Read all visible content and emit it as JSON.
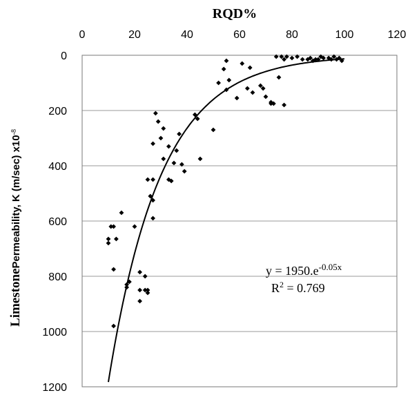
{
  "chart_data": {
    "type": "scatter",
    "title": "RQD%",
    "xlabel": "RQD%",
    "ylabel_bold": "Limestone",
    "ylabel_rest": "Permeability, K  (m/sec) x10",
    "ylabel_exp": "-8",
    "xlim": [
      0,
      120
    ],
    "ylim": [
      0,
      1200
    ],
    "y_inverted": true,
    "x_axis_position": "top",
    "xticks": [
      "0",
      "20",
      "40",
      "60",
      "80",
      "100",
      "120"
    ],
    "yticks": [
      "0",
      "200",
      "400",
      "600",
      "800",
      "1000",
      "1200"
    ],
    "grid": "horizontal",
    "points": [
      [
        10,
        665
      ],
      [
        10,
        680
      ],
      [
        11,
        620
      ],
      [
        12,
        620
      ],
      [
        12,
        775
      ],
      [
        13,
        665
      ],
      [
        12,
        980
      ],
      [
        15,
        570
      ],
      [
        17,
        830
      ],
      [
        17,
        840
      ],
      [
        18,
        820
      ],
      [
        20,
        620
      ],
      [
        22,
        890
      ],
      [
        22,
        850
      ],
      [
        22,
        785
      ],
      [
        24,
        850
      ],
      [
        24,
        800
      ],
      [
        25,
        860
      ],
      [
        25,
        850
      ],
      [
        25,
        450
      ],
      [
        26,
        510
      ],
      [
        27,
        525
      ],
      [
        27,
        450
      ],
      [
        27,
        590
      ],
      [
        27,
        320
      ],
      [
        28,
        210
      ],
      [
        29,
        240
      ],
      [
        30,
        300
      ],
      [
        31,
        375
      ],
      [
        31,
        265
      ],
      [
        33,
        450
      ],
      [
        33,
        330
      ],
      [
        34,
        455
      ],
      [
        35,
        390
      ],
      [
        36,
        345
      ],
      [
        37,
        285
      ],
      [
        38,
        395
      ],
      [
        39,
        420
      ],
      [
        43,
        215
      ],
      [
        44,
        230
      ],
      [
        45,
        375
      ],
      [
        50,
        270
      ],
      [
        52,
        100
      ],
      [
        54,
        50
      ],
      [
        55,
        125
      ],
      [
        55,
        20
      ],
      [
        56,
        90
      ],
      [
        59,
        155
      ],
      [
        61,
        30
      ],
      [
        63,
        120
      ],
      [
        64,
        45
      ],
      [
        65,
        135
      ],
      [
        68,
        110
      ],
      [
        69,
        120
      ],
      [
        70,
        150
      ],
      [
        72,
        170
      ],
      [
        72,
        175
      ],
      [
        73,
        175
      ],
      [
        74,
        5
      ],
      [
        75,
        80
      ],
      [
        76,
        5
      ],
      [
        77,
        15
      ],
      [
        77,
        180
      ],
      [
        78,
        5
      ],
      [
        80,
        10
      ],
      [
        82,
        5
      ],
      [
        84,
        15
      ],
      [
        86,
        15
      ],
      [
        87,
        10
      ],
      [
        88,
        20
      ],
      [
        89,
        15
      ],
      [
        90,
        15
      ],
      [
        91,
        5
      ],
      [
        92,
        10
      ],
      [
        94,
        10
      ],
      [
        95,
        15
      ],
      [
        96,
        5
      ],
      [
        97,
        15
      ],
      [
        98,
        10
      ],
      [
        99,
        20
      ]
    ],
    "trendline": {
      "type": "exponential",
      "a": 1950,
      "b": -0.05
    },
    "annotation_line1_main": "y = 1950.e",
    "annotation_line1_sup": "-0.05x",
    "annotation_line2_main": "R",
    "annotation_line2_sup": "2",
    "annotation_line2_rest": " = 0.769"
  }
}
